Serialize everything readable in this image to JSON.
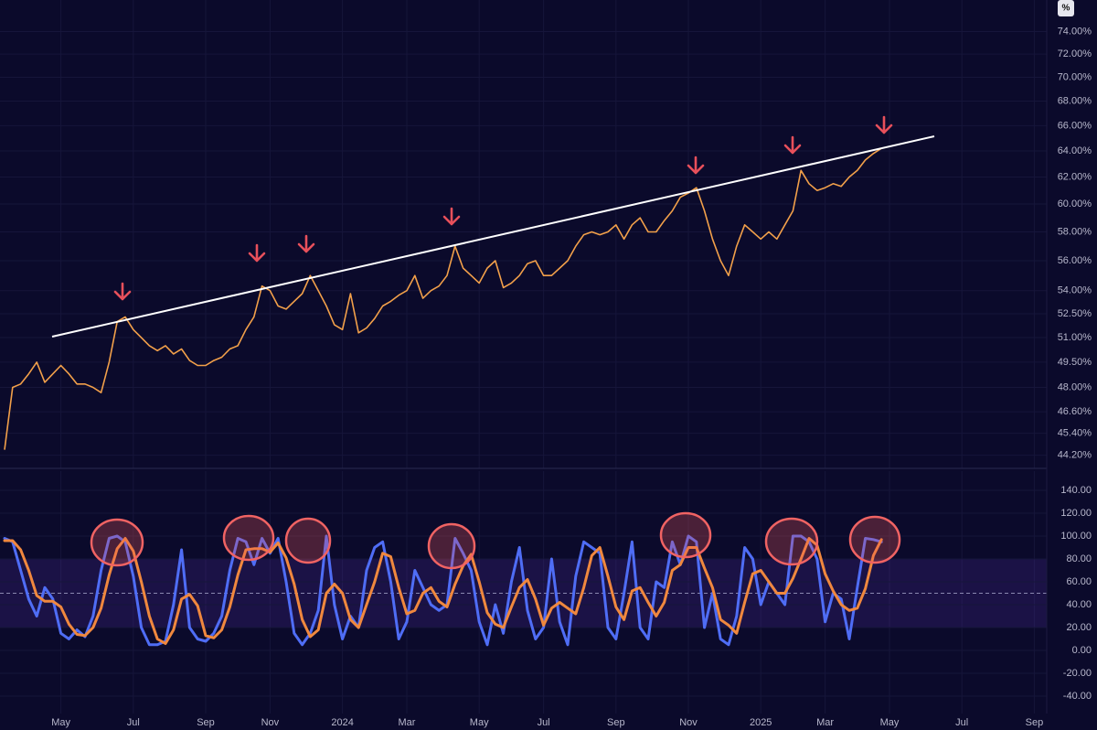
{
  "chart_data": {
    "type": "line",
    "categories": [
      null,
      null,
      null,
      null,
      null,
      null,
      null,
      "May",
      null,
      null,
      null,
      null,
      null,
      null,
      null,
      null,
      "Jul",
      null,
      null,
      null,
      null,
      null,
      null,
      null,
      null,
      "Sep",
      null,
      null,
      null,
      null,
      null,
      null,
      null,
      "Nov",
      null,
      null,
      null,
      null,
      null,
      null,
      null,
      null,
      "2024",
      null,
      null,
      null,
      null,
      null,
      null,
      null,
      "Mar",
      null,
      null,
      null,
      null,
      null,
      null,
      null,
      null,
      "May",
      null,
      null,
      null,
      null,
      null,
      null,
      null,
      "Jul",
      null,
      null,
      null,
      null,
      null,
      null,
      null,
      null,
      "Sep",
      null,
      null,
      null,
      null,
      null,
      null,
      null,
      null,
      "Nov",
      null,
      null,
      null,
      null,
      null,
      null,
      null,
      null,
      "2025",
      null,
      null,
      null,
      null,
      null,
      null,
      null,
      "Mar",
      null,
      null,
      null,
      null,
      null,
      null,
      null,
      "May",
      null,
      null,
      null,
      null,
      null,
      null,
      null,
      null,
      "Jul",
      null,
      null,
      null,
      null,
      null,
      null,
      null,
      null,
      "Sep",
      null
    ],
    "grid": true,
    "panes": [
      {
        "type": "line",
        "unit": "%",
        "log": true,
        "color": "#f2a04a",
        "ylim": [
          43.5,
          76.9
        ],
        "yticks": [
          {
            "value": 74,
            "label": "74.00%"
          },
          {
            "value": 72,
            "label": "72.00%"
          },
          {
            "value": 70,
            "label": "70.00%"
          },
          {
            "value": 68,
            "label": "68.00%"
          },
          {
            "value": 66,
            "label": "66.00%"
          },
          {
            "value": 64,
            "label": "64.00%"
          },
          {
            "value": 62,
            "label": "62.00%"
          },
          {
            "value": 60,
            "label": "60.00%"
          },
          {
            "value": 58,
            "label": "58.00%"
          },
          {
            "value": 56,
            "label": "56.00%"
          },
          {
            "value": 54,
            "label": "54.00%"
          },
          {
            "value": 52.5,
            "label": "52.50%"
          },
          {
            "value": 51,
            "label": "51.00%"
          },
          {
            "value": 49.5,
            "label": "49.50%"
          },
          {
            "value": 48,
            "label": "48.00%"
          },
          {
            "value": 46.6,
            "label": "46.60%"
          },
          {
            "value": 45.4,
            "label": "45.40%"
          },
          {
            "value": 44.2,
            "label": "44.20%"
          }
        ],
        "values": [
          44.5,
          48,
          48.2,
          48.8,
          49.5,
          48.3,
          48.8,
          49.3,
          48.8,
          48.2,
          48.2,
          48,
          47.7,
          49.5,
          52,
          52.3,
          51.5,
          51,
          50.5,
          50.2,
          50.5,
          50,
          50.3,
          49.6,
          49.3,
          49.3,
          49.6,
          49.8,
          50.3,
          50.5,
          51.5,
          52.3,
          54.3,
          54,
          53,
          52.8,
          53.3,
          53.8,
          55,
          54,
          53,
          51.8,
          51.5,
          53.8,
          51.3,
          51.6,
          52.2,
          53,
          53.3,
          53.7,
          54,
          55,
          53.5,
          54,
          54.3,
          55,
          57,
          55.5,
          55,
          54.5,
          55.5,
          56,
          54.2,
          54.5,
          55,
          55.8,
          56,
          55,
          55,
          55.5,
          56,
          57,
          57.8,
          58,
          57.8,
          58,
          58.5,
          57.5,
          58.5,
          59,
          58,
          58,
          58.8,
          59.5,
          60.5,
          60.8,
          61.2,
          59.5,
          57.5,
          56,
          55,
          57,
          58.5,
          58,
          57.5,
          58,
          57.5,
          58.5,
          59.5,
          62.5,
          61.5,
          61,
          61.2,
          61.5,
          61.3,
          62,
          62.5,
          63.3,
          63.8,
          64.2,
          null,
          null,
          null,
          null,
          null,
          null,
          null,
          null,
          null,
          null,
          null,
          null,
          null,
          null,
          null,
          null,
          null,
          null,
          null,
          null
        ]
      },
      {
        "type": "line",
        "ylim": [
          -55.2,
          156.8
        ],
        "yticks": [
          {
            "value": 140,
            "label": "140.00"
          },
          {
            "value": 120,
            "label": "120.00"
          },
          {
            "value": 100,
            "label": "100.00"
          },
          {
            "value": 80,
            "label": "80.00"
          },
          {
            "value": 60,
            "label": "60.00"
          },
          {
            "value": 40,
            "label": "40.00"
          },
          {
            "value": 20,
            "label": "20.00"
          },
          {
            "value": 0,
            "label": "0.00"
          },
          {
            "value": -20,
            "label": "-20.00"
          },
          {
            "value": -40,
            "label": "-40.00"
          }
        ],
        "band": [
          20,
          80
        ],
        "levels": [
          80,
          50,
          20
        ],
        "series": [
          {
            "color": "#4f6df5",
            "values": [
              98,
              95,
              70,
              45,
              30,
              55,
              45,
              15,
              10,
              18,
              12,
              30,
              70,
              98,
              100,
              95,
              65,
              20,
              5,
              5,
              8,
              40,
              88,
              20,
              10,
              8,
              15,
              30,
              70,
              98,
              95,
              75,
              98,
              85,
              98,
              60,
              15,
              5,
              15,
              35,
              100,
              40,
              10,
              30,
              20,
              70,
              90,
              95,
              60,
              10,
              25,
              70,
              55,
              40,
              35,
              40,
              98,
              85,
              70,
              25,
              5,
              40,
              15,
              60,
              90,
              35,
              10,
              20,
              80,
              25,
              5,
              65,
              95,
              90,
              85,
              20,
              10,
              50,
              95,
              20,
              10,
              60,
              55,
              95,
              75,
              100,
              95,
              20,
              50,
              10,
              5,
              30,
              90,
              80,
              40,
              60,
              50,
              40,
              100,
              100,
              95,
              80,
              25,
              50,
              45,
              10,
              55,
              98,
              97,
              95,
              null,
              null,
              null,
              null,
              null,
              null,
              null,
              null,
              null,
              null,
              null,
              null,
              null,
              null,
              null,
              null,
              null,
              null,
              null,
              null
            ]
          },
          {
            "color": "#f0883e",
            "values": [
              96,
              96,
              88,
              70,
              48,
              43,
              43,
              38,
              23,
              14,
              13,
              20,
              37,
              66,
              89,
              98,
              87,
              60,
              30,
              10,
              6,
              18,
              45,
              49,
              39,
              13,
              11,
              18,
              38,
              66,
              88,
              89,
              89,
              86,
              94,
              81,
              58,
              27,
              12,
              18,
              50,
              58,
              50,
              27,
              20,
              40,
              60,
              85,
              82,
              55,
              32,
              35,
              50,
              55,
              43,
              38,
              58,
              74,
              84,
              60,
              33,
              23,
              20,
              38,
              55,
              62,
              45,
              22,
              37,
              42,
              37,
              32,
              55,
              83,
              90,
              65,
              38,
              27,
              52,
              55,
              42,
              30,
              42,
              70,
              75,
              90,
              90,
              72,
              55,
              27,
              22,
              15,
              42,
              67,
              70,
              60,
              50,
              50,
              63,
              80,
              98,
              92,
              67,
              52,
              40,
              35,
              37,
              54,
              83,
              97,
              null,
              null,
              null,
              null,
              null,
              null,
              null,
              null,
              null,
              null,
              null,
              null,
              null,
              null,
              null,
              null,
              null,
              null,
              null,
              null
            ]
          }
        ]
      }
    ]
  }
}
